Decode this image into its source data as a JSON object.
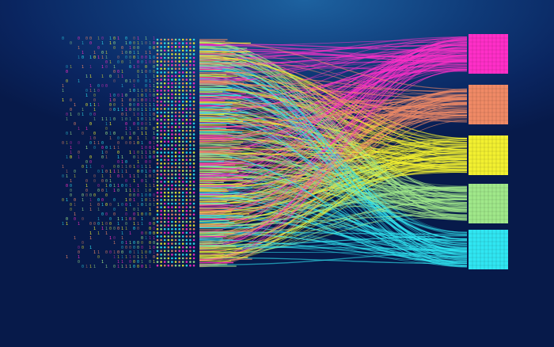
{
  "illustration": {
    "background_colors": [
      "#1d62a0",
      "#0f3a78",
      "#071a4a"
    ],
    "stream_colors": [
      "#ff2fc8",
      "#f08a66",
      "#f2f030",
      "#a0e88a",
      "#30e6f2"
    ],
    "binary_glyphs": [
      "0",
      "1"
    ],
    "targets": [
      {
        "color": "#ff2fc8"
      },
      {
        "color": "#f08a66"
      },
      {
        "color": "#f2f030"
      },
      {
        "color": "#a0e88a"
      },
      {
        "color": "#30e6f2"
      }
    ]
  }
}
